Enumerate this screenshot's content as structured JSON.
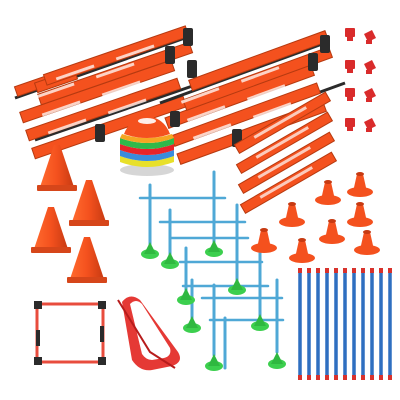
{
  "scene": {
    "background": "#ffffff",
    "colors": {
      "orange": "#f4511e",
      "orange_dark": "#c73a12",
      "ladder_strap": "#2b2b2b",
      "hurdle_pole": "#4fa8d6",
      "hurdle_base": "#3ccf4e",
      "stick_blue": "#2f6fc0",
      "stick_red": "#d8322c",
      "square_border": "#e84c3d",
      "clip_red": "#d92b2b"
    },
    "items": [
      {
        "name": "agility-ladder",
        "count": 2
      },
      {
        "name": "traffic-cone",
        "count": 4
      },
      {
        "name": "disc-cone-stack",
        "count": 1
      },
      {
        "name": "adjustable-hurdle",
        "count": 6
      },
      {
        "name": "wall-clip",
        "count": 8
      },
      {
        "name": "flat-marker-strip",
        "count": 4
      },
      {
        "name": "hurdle-base-cone",
        "count": 8
      },
      {
        "name": "agility-stick",
        "count": 12
      },
      {
        "name": "agility-square",
        "count": 1
      },
      {
        "name": "resistance-band",
        "count": 1
      }
    ]
  }
}
